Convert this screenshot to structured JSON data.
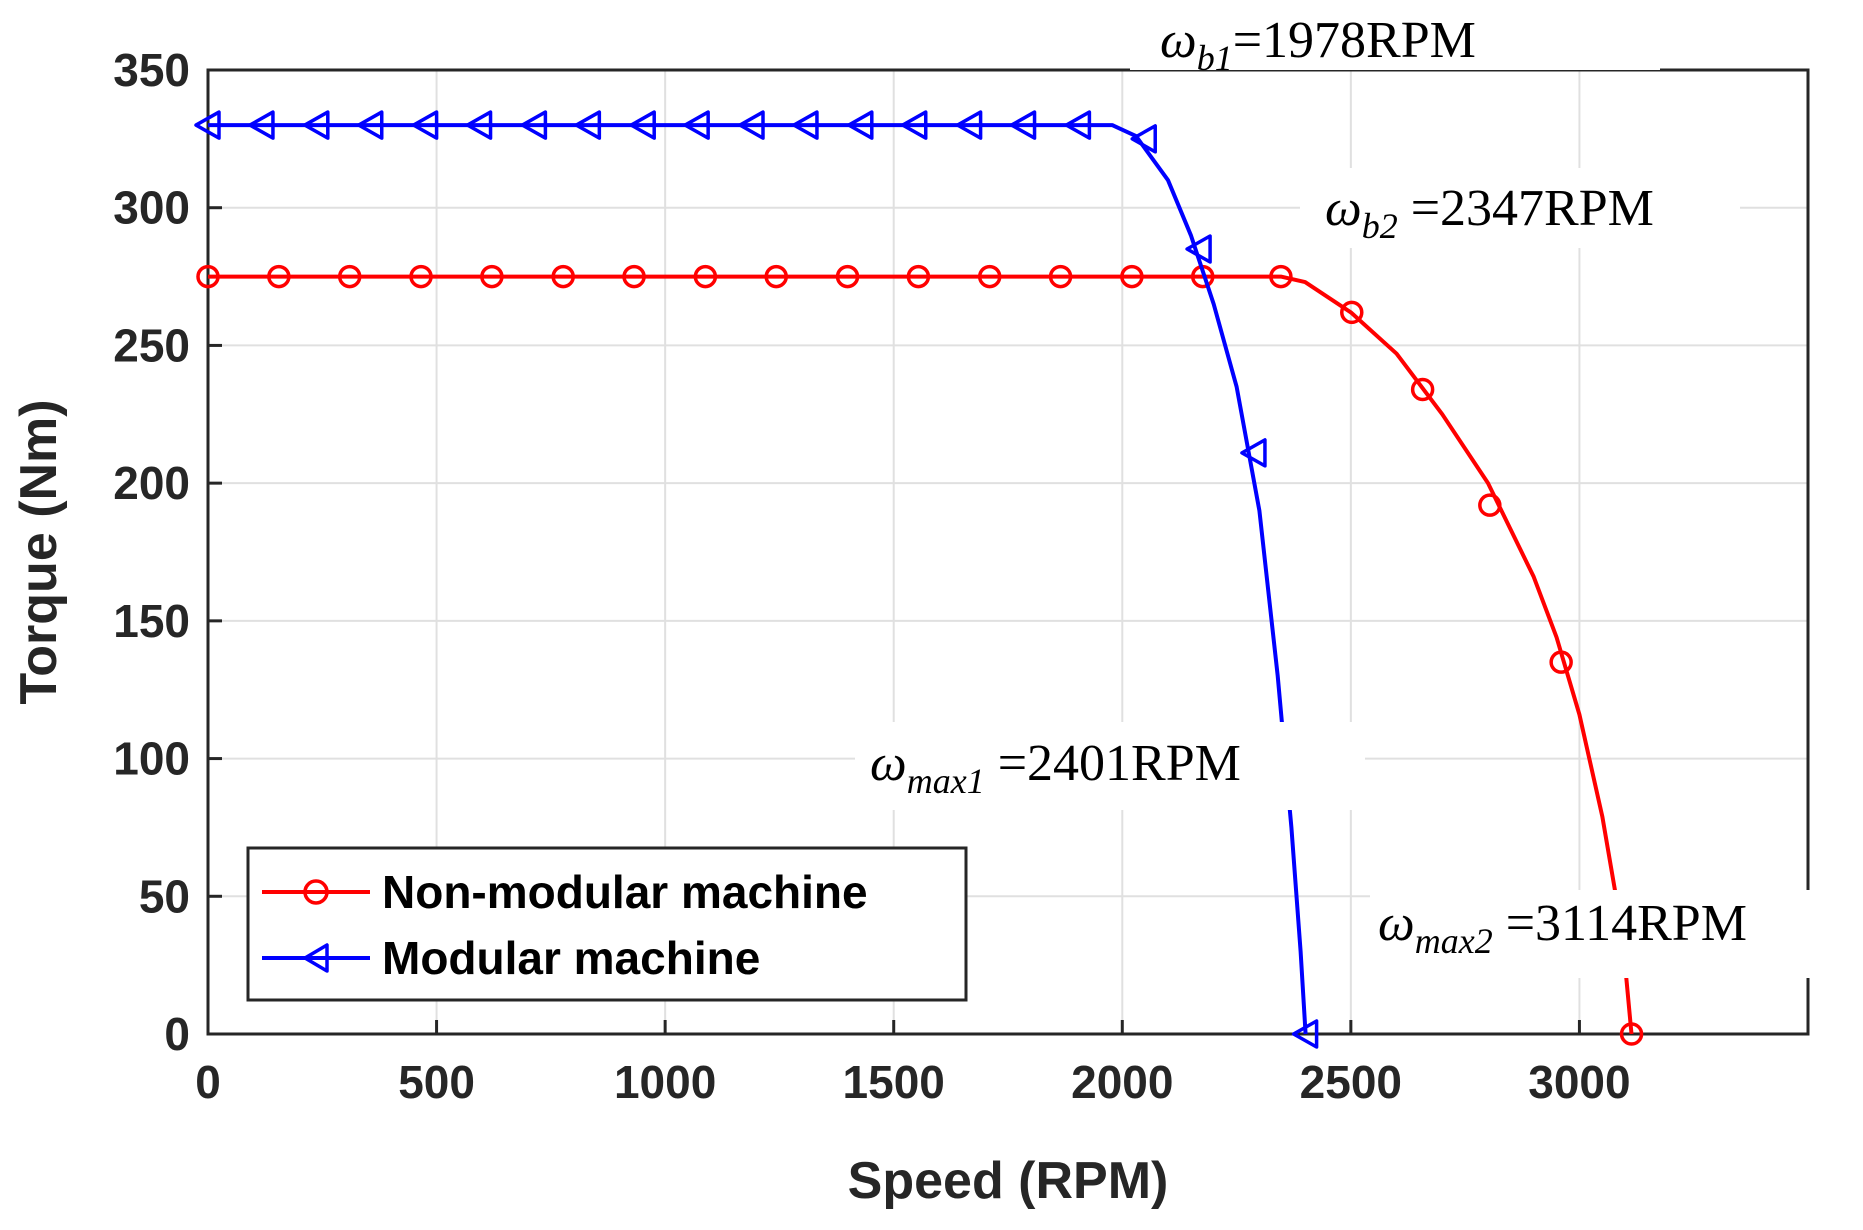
{
  "chart_data": {
    "type": "line",
    "title": "",
    "xlabel": "Speed (RPM)",
    "ylabel": "Torque (Nm)",
    "xlim": [
      0,
      3500
    ],
    "ylim": [
      0,
      350
    ],
    "xticks": [
      0,
      500,
      1000,
      1500,
      2000,
      2500,
      3000
    ],
    "yticks": [
      0,
      50,
      100,
      150,
      200,
      250,
      300,
      350
    ],
    "grid": true,
    "legend_position": "bottom-left",
    "series": [
      {
        "name": "Non-modular machine",
        "color": "#ff0000",
        "marker": "circle",
        "x": [
          0,
          200,
          400,
          600,
          800,
          1000,
          1200,
          1400,
          1600,
          1800,
          2000,
          2100,
          2200,
          2300,
          2347,
          2400,
          2500,
          2600,
          2700,
          2800,
          2900,
          2950,
          3000,
          3050,
          3080,
          3100,
          3114
        ],
        "y": [
          275,
          275,
          275,
          275,
          275,
          275,
          275,
          275,
          275,
          275,
          275,
          275,
          275,
          275,
          275,
          273,
          262,
          247,
          225,
          200,
          166,
          144,
          116,
          79,
          50,
          25,
          0
        ],
        "marker_x": [
          0,
          155,
          310,
          466,
          621,
          777,
          932,
          1088,
          1243,
          1399,
          1554,
          1710,
          1865,
          2021,
          2176,
          2347,
          2502,
          2657,
          2804,
          2960,
          3114
        ],
        "marker_y": [
          275,
          275,
          275,
          275,
          275,
          275,
          275,
          275,
          275,
          275,
          275,
          275,
          275,
          275,
          275,
          275,
          262,
          234,
          192,
          135,
          0
        ]
      },
      {
        "name": "Modular machine",
        "color": "#0000ff",
        "marker": "triangle-left",
        "x": [
          0,
          200,
          400,
          600,
          800,
          1000,
          1200,
          1400,
          1600,
          1800,
          1978,
          2030,
          2100,
          2150,
          2200,
          2250,
          2300,
          2340,
          2370,
          2390,
          2401
        ],
        "y": [
          330,
          330,
          330,
          330,
          330,
          330,
          330,
          330,
          330,
          330,
          330,
          326,
          310,
          290,
          265,
          235,
          190,
          130,
          75,
          30,
          0
        ],
        "marker_x": [
          0,
          118,
          238,
          356,
          476,
          594,
          714,
          832,
          952,
          1070,
          1190,
          1308,
          1428,
          1546,
          1666,
          1784,
          1904,
          2048,
          2168,
          2288,
          2401
        ],
        "marker_y": [
          330,
          330,
          330,
          330,
          330,
          330,
          330,
          330,
          330,
          330,
          330,
          330,
          330,
          330,
          330,
          330,
          330,
          325,
          285,
          211,
          0
        ]
      }
    ],
    "annotations": [
      {
        "symbol": "ω",
        "subscript": "b1",
        "text": "=1978RPM"
      },
      {
        "symbol": "ω",
        "subscript": "b2",
        "text": " =2347RPM"
      },
      {
        "symbol": "ω",
        "subscript": "max1",
        "text": " =2401RPM"
      },
      {
        "symbol": "ω",
        "subscript": "max2",
        "text": " =3114RPM"
      }
    ]
  }
}
